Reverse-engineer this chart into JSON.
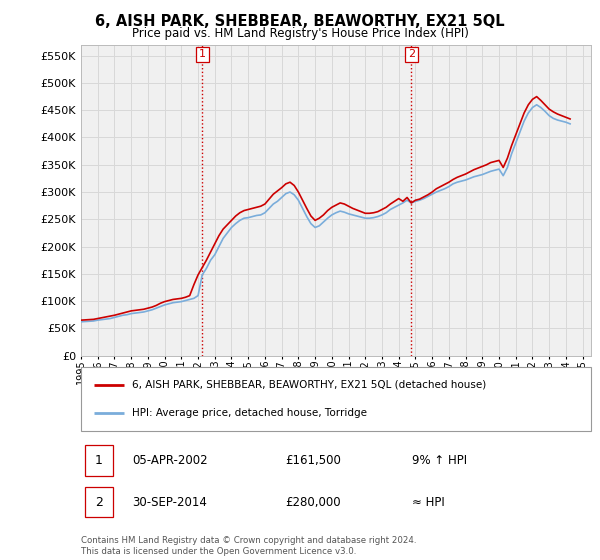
{
  "title": "6, AISH PARK, SHEBBEAR, BEAWORTHY, EX21 5QL",
  "subtitle": "Price paid vs. HM Land Registry's House Price Index (HPI)",
  "ylim": [
    0,
    570000
  ],
  "yticks": [
    0,
    50000,
    100000,
    150000,
    200000,
    250000,
    300000,
    350000,
    400000,
    450000,
    500000,
    550000
  ],
  "xlim_start": 1995.0,
  "xlim_end": 2025.5,
  "grid_color": "#d8d8d8",
  "bg_color": "#ffffff",
  "plot_bg_color": "#f0f0f0",
  "hpi_color": "#7aaddb",
  "price_color": "#cc0000",
  "vline_color": "#cc0000",
  "marker1_year": 2002.25,
  "marker2_year": 2014.75,
  "legend_line1": "6, AISH PARK, SHEBBEAR, BEAWORTHY, EX21 5QL (detached house)",
  "legend_line2": "HPI: Average price, detached house, Torridge",
  "table_rows": [
    {
      "num": "1",
      "date": "05-APR-2002",
      "price": "£161,500",
      "note": "9% ↑ HPI"
    },
    {
      "num": "2",
      "date": "30-SEP-2014",
      "price": "£280,000",
      "note": "≈ HPI"
    }
  ],
  "footer": "Contains HM Land Registry data © Crown copyright and database right 2024.\nThis data is licensed under the Open Government Licence v3.0.",
  "hpi_data": {
    "years": [
      1995.0,
      1995.25,
      1995.5,
      1995.75,
      1996.0,
      1996.25,
      1996.5,
      1996.75,
      1997.0,
      1997.25,
      1997.5,
      1997.75,
      1998.0,
      1998.25,
      1998.5,
      1998.75,
      1999.0,
      1999.25,
      1999.5,
      1999.75,
      2000.0,
      2000.25,
      2000.5,
      2000.75,
      2001.0,
      2001.25,
      2001.5,
      2001.75,
      2002.0,
      2002.25,
      2002.5,
      2002.75,
      2003.0,
      2003.25,
      2003.5,
      2003.75,
      2004.0,
      2004.25,
      2004.5,
      2004.75,
      2005.0,
      2005.25,
      2005.5,
      2005.75,
      2006.0,
      2006.25,
      2006.5,
      2006.75,
      2007.0,
      2007.25,
      2007.5,
      2007.75,
      2008.0,
      2008.25,
      2008.5,
      2008.75,
      2009.0,
      2009.25,
      2009.5,
      2009.75,
      2010.0,
      2010.25,
      2010.5,
      2010.75,
      2011.0,
      2011.25,
      2011.5,
      2011.75,
      2012.0,
      2012.25,
      2012.5,
      2012.75,
      2013.0,
      2013.25,
      2013.5,
      2013.75,
      2014.0,
      2014.25,
      2014.5,
      2014.75,
      2015.0,
      2015.25,
      2015.5,
      2015.75,
      2016.0,
      2016.25,
      2016.5,
      2016.75,
      2017.0,
      2017.25,
      2017.5,
      2017.75,
      2018.0,
      2018.25,
      2018.5,
      2018.75,
      2019.0,
      2019.25,
      2019.5,
      2019.75,
      2020.0,
      2020.25,
      2020.5,
      2020.75,
      2021.0,
      2021.25,
      2021.5,
      2021.75,
      2022.0,
      2022.25,
      2022.5,
      2022.75,
      2023.0,
      2023.25,
      2023.5,
      2023.75,
      2024.0,
      2024.25
    ],
    "values": [
      62000,
      62500,
      63000,
      63500,
      65000,
      66000,
      67000,
      68000,
      70000,
      72000,
      74000,
      75000,
      77000,
      78000,
      79000,
      80000,
      82000,
      84000,
      87000,
      90000,
      93000,
      95000,
      97000,
      98000,
      99000,
      101000,
      103000,
      105000,
      110000,
      148000,
      160000,
      175000,
      185000,
      200000,
      215000,
      225000,
      235000,
      242000,
      248000,
      252000,
      253000,
      255000,
      257000,
      258000,
      262000,
      270000,
      278000,
      283000,
      290000,
      297000,
      300000,
      295000,
      285000,
      270000,
      255000,
      242000,
      235000,
      238000,
      245000,
      252000,
      258000,
      262000,
      265000,
      263000,
      260000,
      258000,
      256000,
      254000,
      252000,
      252000,
      253000,
      255000,
      258000,
      262000,
      268000,
      272000,
      276000,
      280000,
      285000,
      280000,
      283000,
      285000,
      288000,
      292000,
      296000,
      300000,
      303000,
      306000,
      310000,
      315000,
      318000,
      320000,
      322000,
      325000,
      328000,
      330000,
      332000,
      335000,
      338000,
      340000,
      342000,
      330000,
      345000,
      370000,
      390000,
      410000,
      430000,
      445000,
      455000,
      460000,
      455000,
      448000,
      440000,
      435000,
      432000,
      430000,
      428000,
      425000
    ]
  },
  "price_data": {
    "years": [
      1995.0,
      1995.25,
      1995.5,
      1995.75,
      1996.0,
      1996.25,
      1996.5,
      1996.75,
      1997.0,
      1997.25,
      1997.5,
      1997.75,
      1998.0,
      1998.25,
      1998.5,
      1998.75,
      1999.0,
      1999.25,
      1999.5,
      1999.75,
      2000.0,
      2000.25,
      2000.5,
      2000.75,
      2001.0,
      2001.25,
      2001.5,
      2001.75,
      2002.0,
      2002.25,
      2002.5,
      2002.75,
      2003.0,
      2003.25,
      2003.5,
      2003.75,
      2004.0,
      2004.25,
      2004.5,
      2004.75,
      2005.0,
      2005.25,
      2005.5,
      2005.75,
      2006.0,
      2006.25,
      2006.5,
      2006.75,
      2007.0,
      2007.25,
      2007.5,
      2007.75,
      2008.0,
      2008.25,
      2008.5,
      2008.75,
      2009.0,
      2009.25,
      2009.5,
      2009.75,
      2010.0,
      2010.25,
      2010.5,
      2010.75,
      2011.0,
      2011.25,
      2011.5,
      2011.75,
      2012.0,
      2012.25,
      2012.5,
      2012.75,
      2013.0,
      2013.25,
      2013.5,
      2013.75,
      2014.0,
      2014.25,
      2014.5,
      2014.75,
      2015.0,
      2015.25,
      2015.5,
      2015.75,
      2016.0,
      2016.25,
      2016.5,
      2016.75,
      2017.0,
      2017.25,
      2017.5,
      2017.75,
      2018.0,
      2018.25,
      2018.5,
      2018.75,
      2019.0,
      2019.25,
      2019.5,
      2019.75,
      2020.0,
      2020.25,
      2020.5,
      2020.75,
      2021.0,
      2021.25,
      2021.5,
      2021.75,
      2022.0,
      2022.25,
      2022.5,
      2022.75,
      2023.0,
      2023.25,
      2023.5,
      2023.75,
      2024.0,
      2024.25
    ],
    "values": [
      65000,
      65500,
      66000,
      66500,
      68000,
      69500,
      71000,
      72500,
      74000,
      76000,
      78000,
      80000,
      82000,
      83000,
      84000,
      85000,
      87000,
      89000,
      92000,
      96000,
      99000,
      101000,
      103000,
      104000,
      105000,
      107000,
      110000,
      130000,
      148000,
      161500,
      175000,
      190000,
      205000,
      220000,
      232000,
      240000,
      248000,
      256000,
      262000,
      266000,
      268000,
      270000,
      272000,
      274000,
      278000,
      287000,
      296000,
      302000,
      308000,
      315000,
      318000,
      312000,
      300000,
      285000,
      270000,
      256000,
      248000,
      252000,
      258000,
      266000,
      272000,
      276000,
      280000,
      278000,
      274000,
      270000,
      267000,
      264000,
      261000,
      261000,
      262000,
      264000,
      268000,
      272000,
      278000,
      283000,
      288000,
      283000,
      290000,
      280000,
      285000,
      287000,
      291000,
      295000,
      300000,
      306000,
      310000,
      314000,
      318000,
      323000,
      327000,
      330000,
      333000,
      337000,
      341000,
      344000,
      347000,
      350000,
      354000,
      356000,
      358000,
      345000,
      362000,
      385000,
      405000,
      425000,
      445000,
      460000,
      470000,
      475000,
      468000,
      460000,
      452000,
      447000,
      443000,
      440000,
      437000,
      434000
    ]
  }
}
